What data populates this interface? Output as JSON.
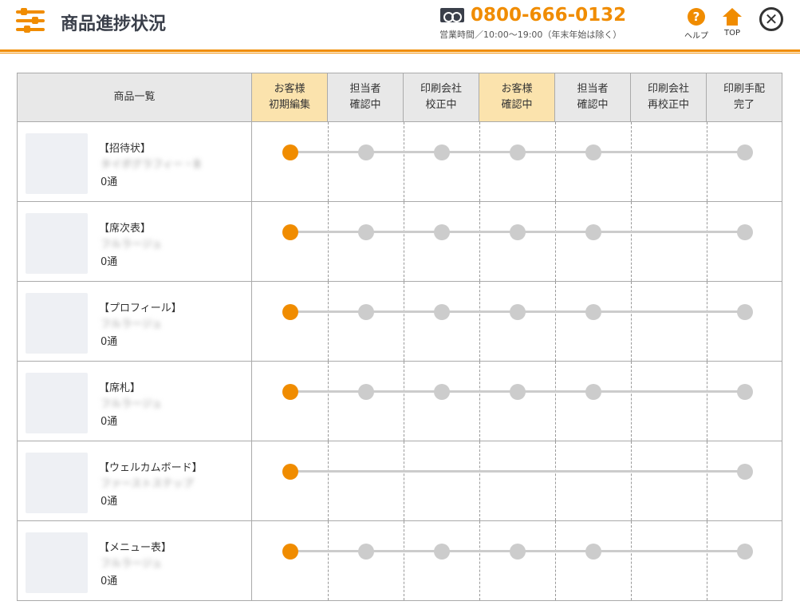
{
  "header": {
    "title": "商品進捗状況",
    "phone": "0800-666-0132",
    "hours": "営業時間／10:00〜19:00（年末年始は除く）",
    "help_label": "ヘルプ",
    "top_label": "TOP",
    "accent": "#f08c00"
  },
  "table": {
    "product_header": "商品一覧",
    "steps": [
      {
        "l1": "お客様",
        "l2": "初期編集",
        "highlight": true
      },
      {
        "l1": "担当者",
        "l2": "確認中",
        "highlight": false
      },
      {
        "l1": "印刷会社",
        "l2": "校正中",
        "highlight": false
      },
      {
        "l1": "お客様",
        "l2": "確認中",
        "highlight": true
      },
      {
        "l1": "担当者",
        "l2": "確認中",
        "highlight": false
      },
      {
        "l1": "印刷会社",
        "l2": "再校正中",
        "highlight": false
      },
      {
        "l1": "印刷手配",
        "l2": "完了",
        "highlight": false
      }
    ],
    "rows": [
      {
        "name": "【招待状】",
        "design": "タイポグラフィー・B",
        "count": "0通",
        "current_step": 1,
        "steps_shown": [
          1,
          2,
          3,
          4,
          5,
          7
        ]
      },
      {
        "name": "【席次表】",
        "design": "フルラージュ",
        "count": "0通",
        "current_step": 1,
        "steps_shown": [
          1,
          2,
          3,
          4,
          5,
          7
        ]
      },
      {
        "name": "【プロフィール】",
        "design": "フルラージュ",
        "count": "0通",
        "current_step": 1,
        "steps_shown": [
          1,
          2,
          3,
          4,
          5,
          7
        ]
      },
      {
        "name": "【席札】",
        "design": "フルラージュ",
        "count": "0通",
        "current_step": 1,
        "steps_shown": [
          1,
          2,
          3,
          4,
          5,
          7
        ]
      },
      {
        "name": "【ウェルカムボード】",
        "design": "ファーストステップ",
        "count": "0通",
        "current_step": 1,
        "steps_shown": [
          1,
          7
        ]
      },
      {
        "name": "【メニュー表】",
        "design": "フルラージュ",
        "count": "0通",
        "current_step": 1,
        "steps_shown": [
          1,
          2,
          3,
          4,
          5,
          7
        ]
      }
    ]
  }
}
